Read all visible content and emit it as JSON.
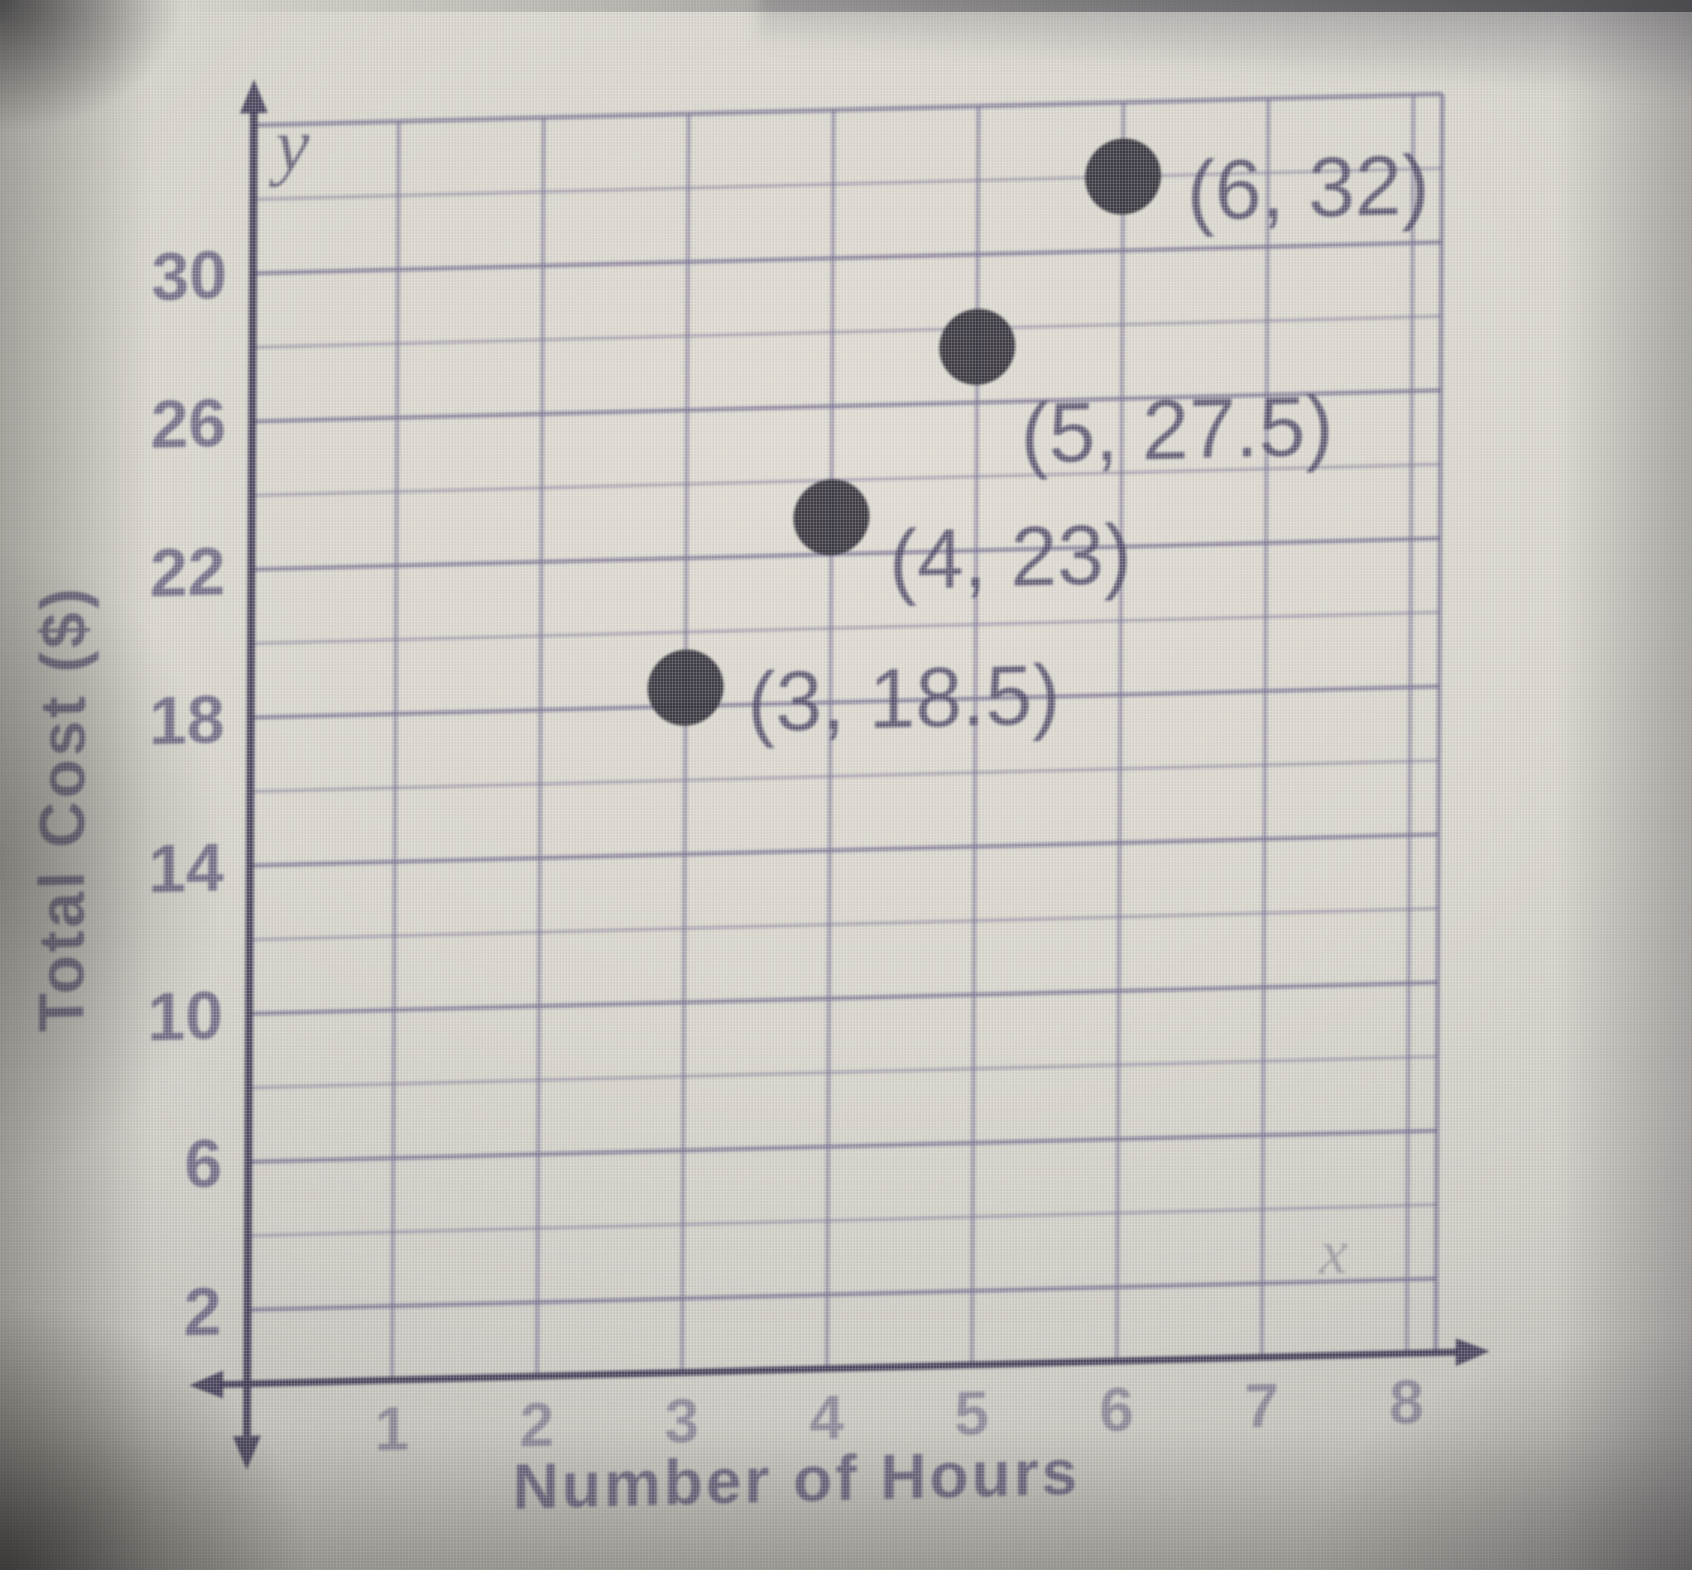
{
  "chart_data": {
    "type": "scatter",
    "title": "",
    "xlabel": "Number of Hours",
    "ylabel": "Total Cost ($)",
    "x_axis_letter": "x",
    "y_axis_letter": "y",
    "points": [
      {
        "x": 3,
        "y": 18.5,
        "label": "(3, 18.5)",
        "label_offset": [
          62,
          16
        ]
      },
      {
        "x": 4,
        "y": 23,
        "label": "(4, 23)",
        "label_offset": [
          58,
          44
        ]
      },
      {
        "x": 5,
        "y": 27.5,
        "label": "(5, 27.5)",
        "label_offset": [
          44,
          88
        ]
      },
      {
        "x": 6,
        "y": 32,
        "label": "(6, 32)",
        "label_offset": [
          64,
          16
        ]
      }
    ],
    "x_ticks": [
      1,
      2,
      3,
      4,
      5,
      6,
      7,
      8
    ],
    "y_ticks": [
      2,
      6,
      10,
      14,
      18,
      22,
      26,
      30
    ],
    "xlim": [
      0,
      8.2
    ],
    "ylim": [
      0,
      34
    ],
    "x_gridline_step": 1,
    "y_gridline_step": 2,
    "grid": true,
    "legend": false
  },
  "colors": {
    "background": "#d6d3ca",
    "gridline": "#6c648a",
    "gridline_major": "#5e5680",
    "axis": "#3a3450",
    "point": "#2c2a34",
    "point_label_text": "#463f5f",
    "tick_text": "#50496d",
    "axis_title_text": "#544d6e"
  }
}
